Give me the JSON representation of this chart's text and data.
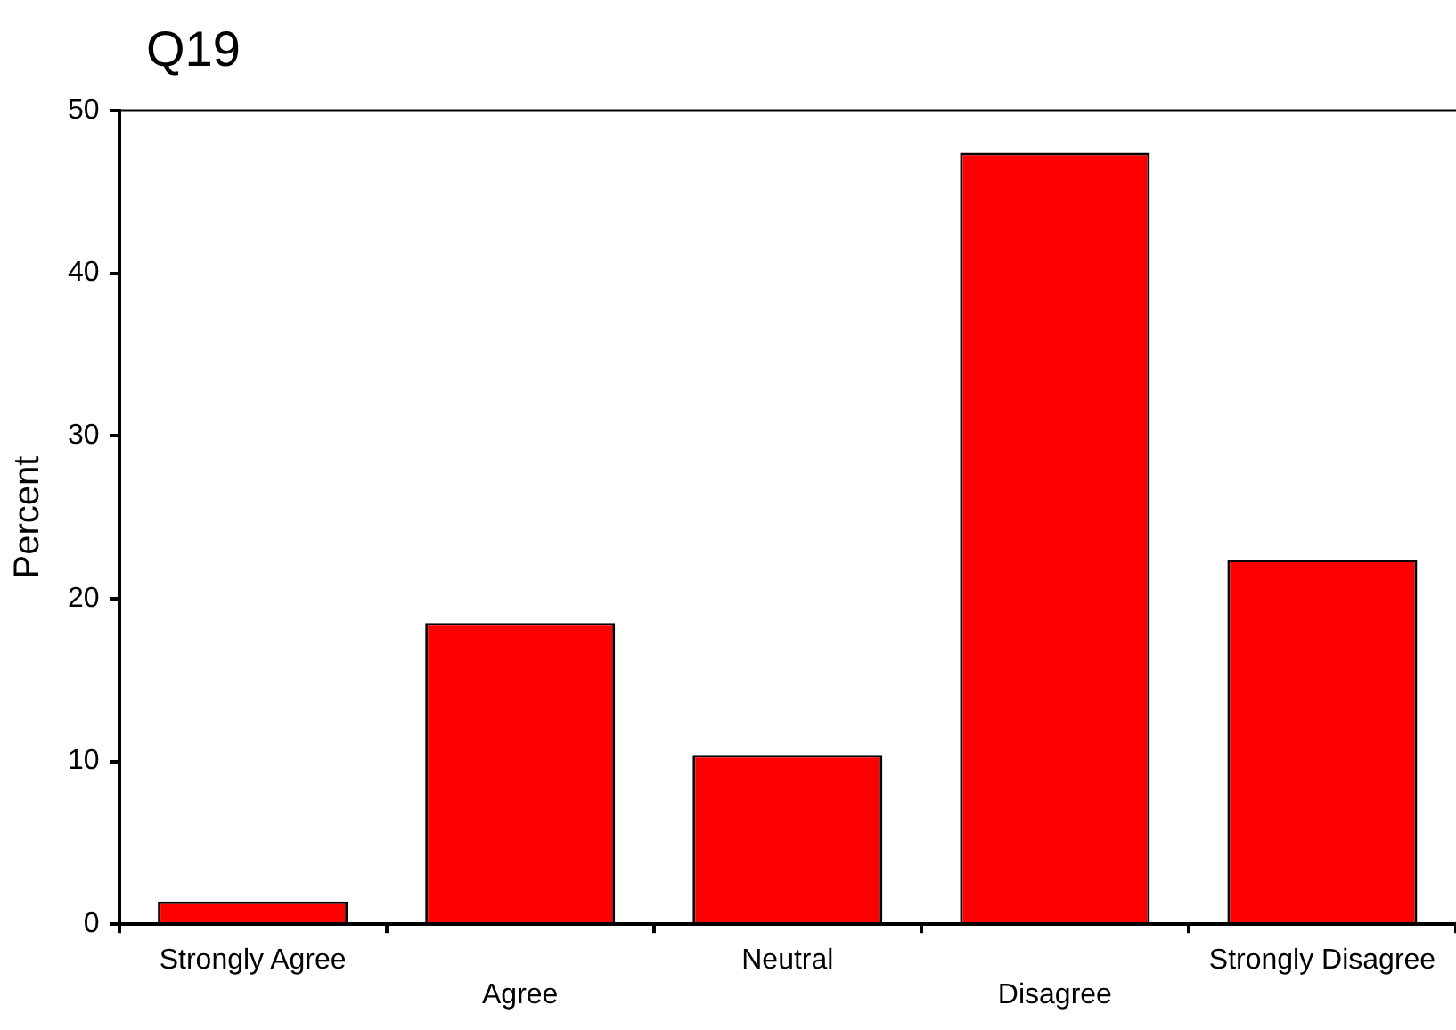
{
  "chart_data": {
    "type": "bar",
    "title": "Q19",
    "ylabel": "Percent",
    "categories": [
      "Strongly Agree",
      "Agree",
      "Neutral",
      "Disagree",
      "Strongly Disagree"
    ],
    "values": [
      1.4,
      18.5,
      10.4,
      47.4,
      22.4
    ],
    "color": "#ff0000",
    "ylim": [
      0,
      50
    ],
    "yticks": [
      0,
      10,
      20,
      30,
      40,
      50
    ],
    "grid": false,
    "legend": false
  }
}
